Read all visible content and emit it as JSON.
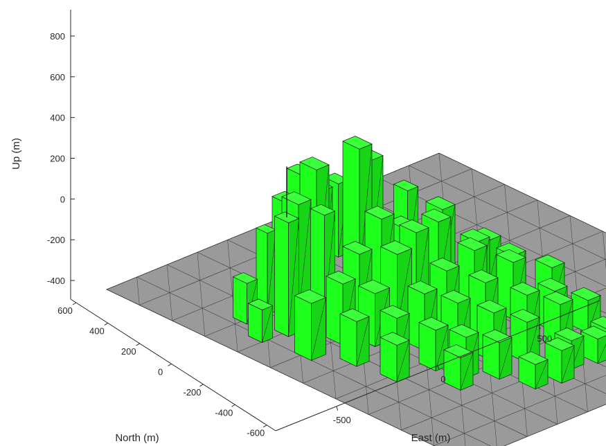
{
  "chart_data": {
    "type": "3d-surface",
    "title": "",
    "xlabel": "East (m)",
    "ylabel": "North (m)",
    "zlabel": "Up (m)",
    "x_ticks": [
      -500,
      0,
      500
    ],
    "y_ticks": [
      600,
      400,
      200,
      0,
      -200,
      -400,
      -600
    ],
    "z_ticks": [
      800,
      600,
      400,
      200,
      0,
      -200,
      -400
    ],
    "xlim": [
      -800,
      800
    ],
    "ylim": [
      -650,
      650
    ],
    "zlim": [
      -450,
      900
    ],
    "grid": "off",
    "ground_plane": {
      "z": -50,
      "color": "#9a9a9a",
      "edge_color": "#3a3a3a"
    },
    "buildings_color": "#1eff1e",
    "building_edge_color": "#1a1a1a",
    "buildings": [
      {
        "e": -560,
        "n": 180,
        "w": 50,
        "d": 50,
        "h": 560
      },
      {
        "e": -500,
        "n": 300,
        "w": 40,
        "d": 40,
        "h": 400
      },
      {
        "e": -420,
        "n": 250,
        "w": 60,
        "d": 60,
        "h": 550
      },
      {
        "e": -360,
        "n": 200,
        "w": 50,
        "d": 50,
        "h": 500
      },
      {
        "e": -300,
        "n": 380,
        "w": 60,
        "d": 50,
        "h": 420
      },
      {
        "e": -240,
        "n": 320,
        "w": 60,
        "d": 60,
        "h": 600
      },
      {
        "e": -180,
        "n": 420,
        "w": 50,
        "d": 50,
        "h": 480
      },
      {
        "e": -120,
        "n": 380,
        "w": 40,
        "d": 40,
        "h": 400
      },
      {
        "e": -60,
        "n": 300,
        "w": 60,
        "d": 60,
        "h": 640
      },
      {
        "e": 0,
        "n": 420,
        "w": 50,
        "d": 50,
        "h": 360
      },
      {
        "e": 60,
        "n": 350,
        "w": 60,
        "d": 60,
        "h": 500
      },
      {
        "e": 120,
        "n": 260,
        "w": 50,
        "d": 50,
        "h": 380
      },
      {
        "e": 180,
        "n": 180,
        "w": 60,
        "d": 60,
        "h": 320
      },
      {
        "e": -620,
        "n": 50,
        "w": 70,
        "d": 60,
        "h": 280
      },
      {
        "e": -540,
        "n": -50,
        "w": 60,
        "d": 60,
        "h": 220
      },
      {
        "e": -460,
        "n": 60,
        "w": 60,
        "d": 60,
        "h": 300
      },
      {
        "e": -380,
        "n": 0,
        "w": 70,
        "d": 60,
        "h": 260
      },
      {
        "e": -300,
        "n": 120,
        "w": 60,
        "d": 60,
        "h": 340
      },
      {
        "e": -220,
        "n": 40,
        "w": 70,
        "d": 60,
        "h": 360
      },
      {
        "e": -140,
        "n": 160,
        "w": 60,
        "d": 60,
        "h": 420
      },
      {
        "e": -80,
        "n": 80,
        "w": 60,
        "d": 60,
        "h": 380
      },
      {
        "e": 0,
        "n": 180,
        "w": 60,
        "d": 60,
        "h": 300
      },
      {
        "e": 80,
        "n": 120,
        "w": 60,
        "d": 60,
        "h": 340
      },
      {
        "e": 160,
        "n": 40,
        "w": 60,
        "d": 60,
        "h": 260
      },
      {
        "e": 240,
        "n": 60,
        "w": 60,
        "d": 60,
        "h": 220
      },
      {
        "e": -520,
        "n": -180,
        "w": 60,
        "d": 60,
        "h": 180
      },
      {
        "e": -440,
        "n": -120,
        "w": 60,
        "d": 60,
        "h": 240
      },
      {
        "e": -360,
        "n": -200,
        "w": 60,
        "d": 60,
        "h": 200
      },
      {
        "e": -280,
        "n": -100,
        "w": 60,
        "d": 60,
        "h": 280
      },
      {
        "e": -200,
        "n": -160,
        "w": 60,
        "d": 60,
        "h": 240
      },
      {
        "e": -120,
        "n": -60,
        "w": 60,
        "d": 60,
        "h": 300
      },
      {
        "e": -40,
        "n": -140,
        "w": 60,
        "d": 60,
        "h": 260
      },
      {
        "e": 40,
        "n": -40,
        "w": 60,
        "d": 60,
        "h": 320
      },
      {
        "e": 120,
        "n": -120,
        "w": 60,
        "d": 60,
        "h": 280
      },
      {
        "e": 200,
        "n": -60,
        "w": 60,
        "d": 60,
        "h": 240
      },
      {
        "e": 280,
        "n": -140,
        "w": 60,
        "d": 60,
        "h": 200
      },
      {
        "e": -400,
        "n": -320,
        "w": 60,
        "d": 60,
        "h": 160
      },
      {
        "e": -320,
        "n": -280,
        "w": 60,
        "d": 60,
        "h": 200
      },
      {
        "e": -240,
        "n": -340,
        "w": 60,
        "d": 60,
        "h": 180
      },
      {
        "e": -160,
        "n": -260,
        "w": 60,
        "d": 60,
        "h": 240
      },
      {
        "e": -80,
        "n": -320,
        "w": 60,
        "d": 60,
        "h": 200
      },
      {
        "e": 0,
        "n": -260,
        "w": 60,
        "d": 60,
        "h": 260
      },
      {
        "e": 80,
        "n": -320,
        "w": 60,
        "d": 60,
        "h": 220
      },
      {
        "e": 160,
        "n": -240,
        "w": 60,
        "d": 60,
        "h": 200
      },
      {
        "e": 240,
        "n": -300,
        "w": 60,
        "d": 60,
        "h": 160
      },
      {
        "e": -200,
        "n": -440,
        "w": 60,
        "d": 60,
        "h": 120
      },
      {
        "e": -100,
        "n": -460,
        "w": 60,
        "d": 60,
        "h": 160
      },
      {
        "e": 0,
        "n": -420,
        "w": 60,
        "d": 60,
        "h": 140
      },
      {
        "e": 100,
        "n": -440,
        "w": 60,
        "d": 60,
        "h": 120
      },
      {
        "e": 200,
        "n": -400,
        "w": 60,
        "d": 60,
        "h": 100
      },
      {
        "e": -600,
        "n": 300,
        "w": 50,
        "d": 50,
        "h": 200
      },
      {
        "e": -660,
        "n": 200,
        "w": 50,
        "d": 50,
        "h": 160
      }
    ],
    "spire": {
      "e": -560,
      "n": 180,
      "top": 760
    }
  }
}
